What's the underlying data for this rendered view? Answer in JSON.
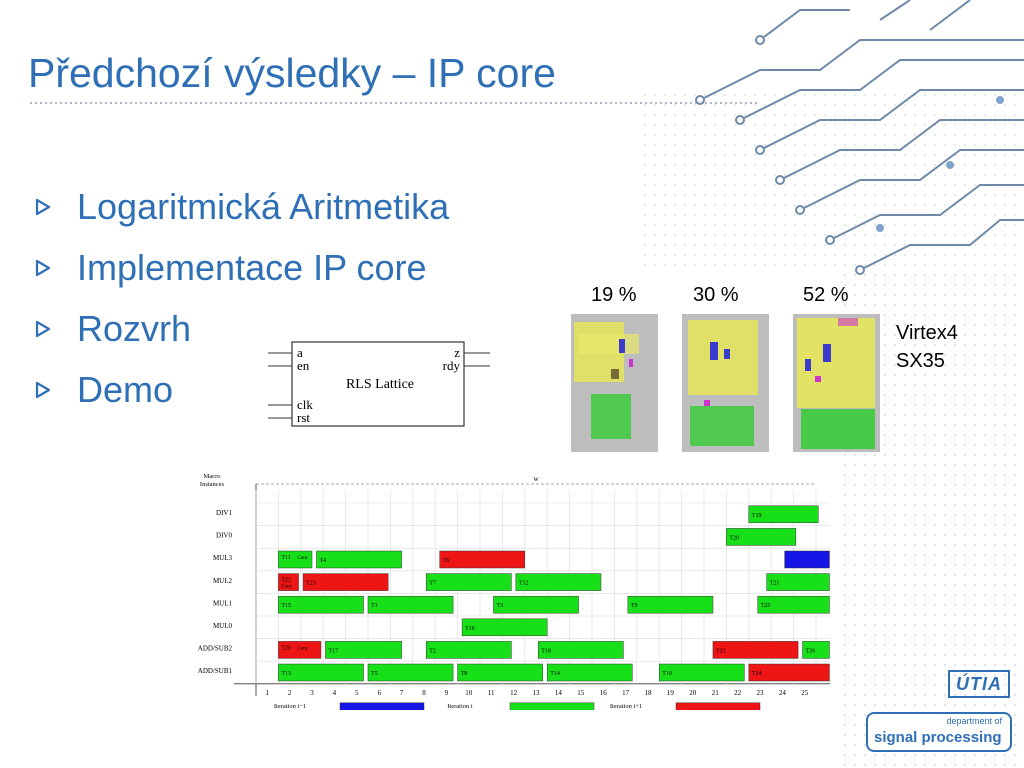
{
  "slide": {
    "title": "Předchozí výsledky – IP core",
    "bullets": [
      "Logaritmická Aritmetika",
      "Implementace IP core",
      "Rozvrh",
      "Demo"
    ]
  },
  "block": {
    "name": "RLS Lattice",
    "ports_left": [
      "a",
      "en",
      "clk",
      "rst"
    ],
    "ports_right": [
      "z",
      "rdy"
    ]
  },
  "utilization": {
    "labels": [
      "19 %",
      "30 %",
      "52 %"
    ],
    "device_line1": "Virtex4",
    "device_line2": "SX35"
  },
  "schedule": {
    "y_title_1": "Macro",
    "y_title_2": "Instances",
    "w_label": "w",
    "rows": [
      "DIV1",
      "DIV0",
      "MUL3",
      "MUL2",
      "MUL1",
      "MUL0",
      "ADD/SUB2",
      "ADD/SUB1"
    ],
    "ticks": [
      "1",
      "2",
      "3",
      "4",
      "5",
      "6",
      "7",
      "8",
      "9",
      "10",
      "11",
      "12",
      "13",
      "14",
      "15",
      "16",
      "17",
      "18",
      "19",
      "20",
      "21",
      "22",
      "23",
      "24",
      "25"
    ],
    "legend": [
      {
        "line1": "Iteration i−1",
        "line2": "Operations",
        "color": "#1515e6",
        "sample": ""
      },
      {
        "line1": "Iteration i",
        "line2": "Operations",
        "color": "#18e018",
        "sample": "Txx"
      },
      {
        "line1": "Iteration i+1",
        "line2": "Operations",
        "color": "#ee1515",
        "sample": "Txx"
      }
    ],
    "tasks": [
      {
        "row": 0,
        "start": 22,
        "end": 25.1,
        "label": "T19",
        "it": 1
      },
      {
        "row": 1,
        "start": 21,
        "end": 24.1,
        "label": "T20",
        "it": 1
      },
      {
        "row": 2,
        "start": 1,
        "end": 2.5,
        "label": "T11",
        "sub": "Cont.",
        "it": 1
      },
      {
        "row": 2,
        "start": 2.7,
        "end": 6.5,
        "label": "T4",
        "it": 1
      },
      {
        "row": 2,
        "start": 8.2,
        "end": 12,
        "label": "T6",
        "it": 2
      },
      {
        "row": 2,
        "start": 23.6,
        "end": 25.6,
        "label": "",
        "it": 0
      },
      {
        "row": 3,
        "start": 1,
        "end": 1.9,
        "label": "T22",
        "sub": "Cont.",
        "it": 2
      },
      {
        "row": 3,
        "start": 2.1,
        "end": 5.9,
        "label": "T23",
        "it": 2
      },
      {
        "row": 3,
        "start": 7.6,
        "end": 11.4,
        "label": "T7",
        "it": 1
      },
      {
        "row": 3,
        "start": 11.6,
        "end": 15.4,
        "label": "T12",
        "it": 1
      },
      {
        "row": 3,
        "start": 22.8,
        "end": 25.6,
        "label": "T21",
        "it": 1
      },
      {
        "row": 4,
        "start": 1,
        "end": 4.8,
        "label": "T15",
        "it": 1
      },
      {
        "row": 4,
        "start": 5,
        "end": 8.8,
        "label": "T1",
        "it": 1
      },
      {
        "row": 4,
        "start": 10.6,
        "end": 14.4,
        "label": "T3",
        "it": 1
      },
      {
        "row": 4,
        "start": 16.6,
        "end": 20.4,
        "label": "T9",
        "it": 1
      },
      {
        "row": 4,
        "start": 22.4,
        "end": 25.6,
        "label": "T25",
        "it": 1
      },
      {
        "row": 5,
        "start": 9.2,
        "end": 13,
        "label": "T16",
        "it": 1
      },
      {
        "row": 6,
        "start": 1,
        "end": 2.9,
        "label": "T26",
        "sub": "Cont.",
        "it": 2
      },
      {
        "row": 6,
        "start": 3.1,
        "end": 6.5,
        "label": "T17",
        "it": 1
      },
      {
        "row": 6,
        "start": 7.6,
        "end": 11.4,
        "label": "T2",
        "it": 1
      },
      {
        "row": 6,
        "start": 12.6,
        "end": 16.4,
        "label": "T18",
        "it": 1
      },
      {
        "row": 6,
        "start": 20.4,
        "end": 24.2,
        "label": "T21",
        "it": 2
      },
      {
        "row": 6,
        "start": 24.4,
        "end": 25.6,
        "label": "T26",
        "it": 1
      },
      {
        "row": 7,
        "start": 1,
        "end": 4.8,
        "label": "T13",
        "it": 1
      },
      {
        "row": 7,
        "start": 5,
        "end": 8.8,
        "label": "T5",
        "it": 1
      },
      {
        "row": 7,
        "start": 9,
        "end": 12.8,
        "label": "T8",
        "it": 1
      },
      {
        "row": 7,
        "start": 13,
        "end": 16.8,
        "label": "T14",
        "it": 1
      },
      {
        "row": 7,
        "start": 18,
        "end": 21.8,
        "label": "T10",
        "it": 1
      },
      {
        "row": 7,
        "start": 22,
        "end": 25.6,
        "label": "T24",
        "it": 2
      }
    ]
  },
  "logos": {
    "utia": "ÚTIA",
    "dept_top": "department of",
    "dept_main": "signal processing"
  }
}
